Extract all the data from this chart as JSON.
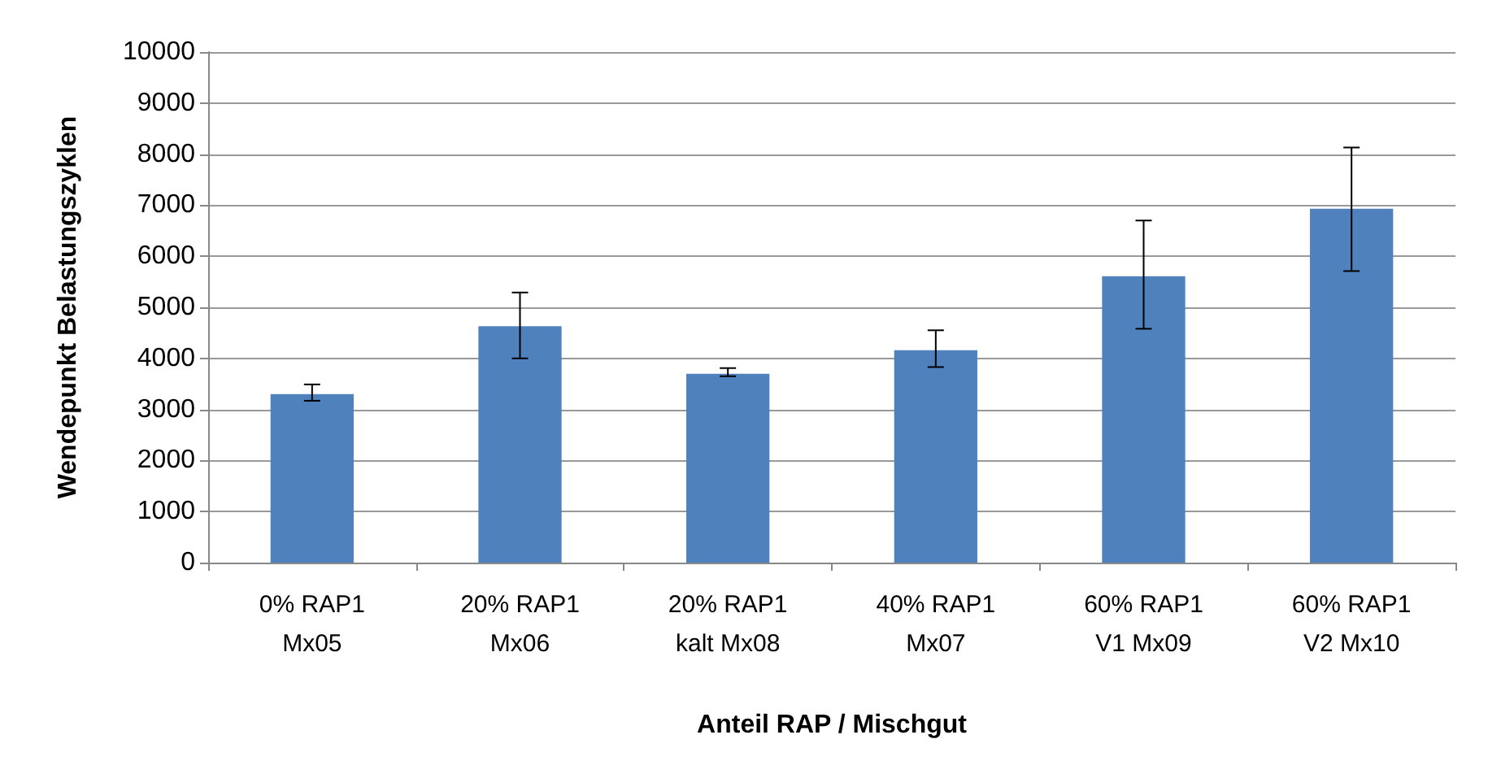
{
  "chart_data": {
    "type": "bar",
    "xlabel": "Anteil RAP / Mischgut",
    "ylabel": "Wendepunkt Belastungszyklen",
    "categories": [
      "0% RAP1\nMx05",
      "20% RAP1\nMx06",
      "20% RAP1\nkalt Mx08",
      "40% RAP1\nMx07",
      "60% RAP1\nV1 Mx09",
      "60% RAP1\nV2 Mx10"
    ],
    "values": [
      3300,
      4630,
      3700,
      4160,
      5610,
      6930
    ],
    "errors": [
      [
        3170,
        3490
      ],
      [
        4000,
        5290
      ],
      [
        3650,
        3810
      ],
      [
        3830,
        4550
      ],
      [
        4580,
        6700
      ],
      [
        5710,
        8130
      ]
    ],
    "color": "#4f81bd",
    "ylim": [
      0,
      10000
    ],
    "yticks": [
      0,
      1000,
      2000,
      3000,
      4000,
      5000,
      6000,
      7000,
      8000,
      9000,
      10000
    ],
    "grid": "y"
  }
}
